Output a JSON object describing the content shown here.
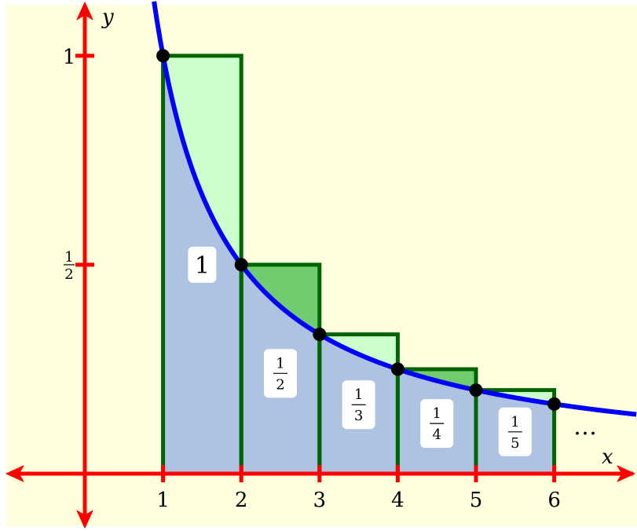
{
  "chart_data": {
    "type": "area",
    "function": "1/x",
    "x_range": [
      -1,
      7
    ],
    "y_range": [
      -0.13,
      1.13
    ],
    "xlabel": "x",
    "ylabel": "y",
    "x_ticks": [
      "1",
      "2",
      "3",
      "4",
      "5",
      "6"
    ],
    "y_ticks": [
      {
        "value": 1,
        "label": "1"
      },
      {
        "value": 0.5,
        "num": "1",
        "den": "2"
      }
    ],
    "points": [
      {
        "x": 1,
        "y": 1
      },
      {
        "x": 2,
        "y": 0.5
      },
      {
        "x": 3,
        "y": 0.3333
      },
      {
        "x": 4,
        "y": 0.25
      },
      {
        "x": 5,
        "y": 0.2
      },
      {
        "x": 6,
        "y": 0.1667
      }
    ],
    "rectangles": [
      {
        "x0": 1,
        "x1": 2,
        "height": 1,
        "label_num": "1",
        "label_den": ""
      },
      {
        "x0": 2,
        "x1": 3,
        "height": 0.5,
        "label_num": "1",
        "label_den": "2"
      },
      {
        "x0": 3,
        "x1": 4,
        "height": 0.3333,
        "label_num": "1",
        "label_den": "3"
      },
      {
        "x0": 4,
        "x1": 5,
        "height": 0.25,
        "label_num": "1",
        "label_den": "4"
      },
      {
        "x0": 5,
        "x1": 6,
        "height": 0.2,
        "label_num": "1",
        "label_den": "5"
      }
    ],
    "continuation": "…",
    "colors": {
      "background": "#ffffdd",
      "curve": "#0000ff",
      "axes": "#ff0000",
      "rect_border": "#006400",
      "under_curve": "#adc3e1",
      "excess_light": "#ccffcc",
      "excess_dark": "#6fcc6f",
      "points": "#000000",
      "label_box": "#ffffff"
    }
  }
}
